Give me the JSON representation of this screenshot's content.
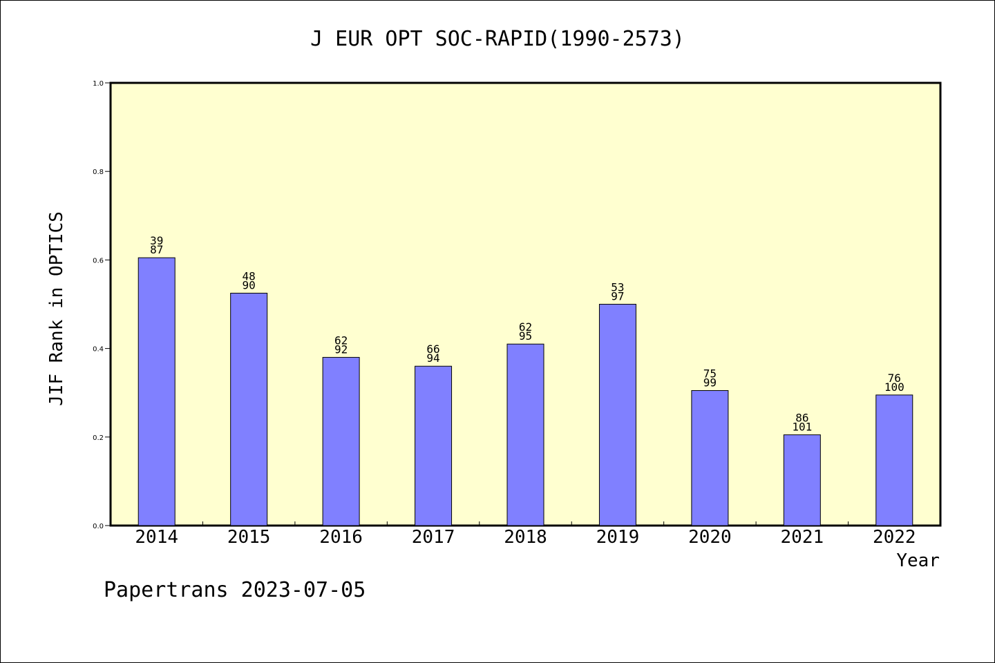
{
  "chart_data": {
    "type": "bar",
    "title": "J EUR OPT SOC-RAPID(1990-2573)",
    "xlabel": "Year",
    "ylabel": "JIF Rank in OPTICS",
    "ylim": [
      0,
      1.0
    ],
    "yticks": [
      "0.0",
      "0.2",
      "0.4",
      "0.6",
      "0.8",
      "1.0"
    ],
    "categories": [
      "2014",
      "2015",
      "2016",
      "2017",
      "2018",
      "2019",
      "2020",
      "2021",
      "2022"
    ],
    "values": [
      0.605,
      0.525,
      0.38,
      0.36,
      0.41,
      0.5,
      0.305,
      0.205,
      0.295
    ],
    "rank_labels": [
      "39",
      "48",
      "62",
      "66",
      "62",
      "53",
      "75",
      "86",
      "76"
    ],
    "total_labels": [
      "87",
      "90",
      "92",
      "94",
      "95",
      "97",
      "99",
      "101",
      "100"
    ],
    "bar_color": "#8080ff",
    "plot_background": "#ffffd0",
    "grid": false
  },
  "footer": "Papertrans 2023-07-05"
}
